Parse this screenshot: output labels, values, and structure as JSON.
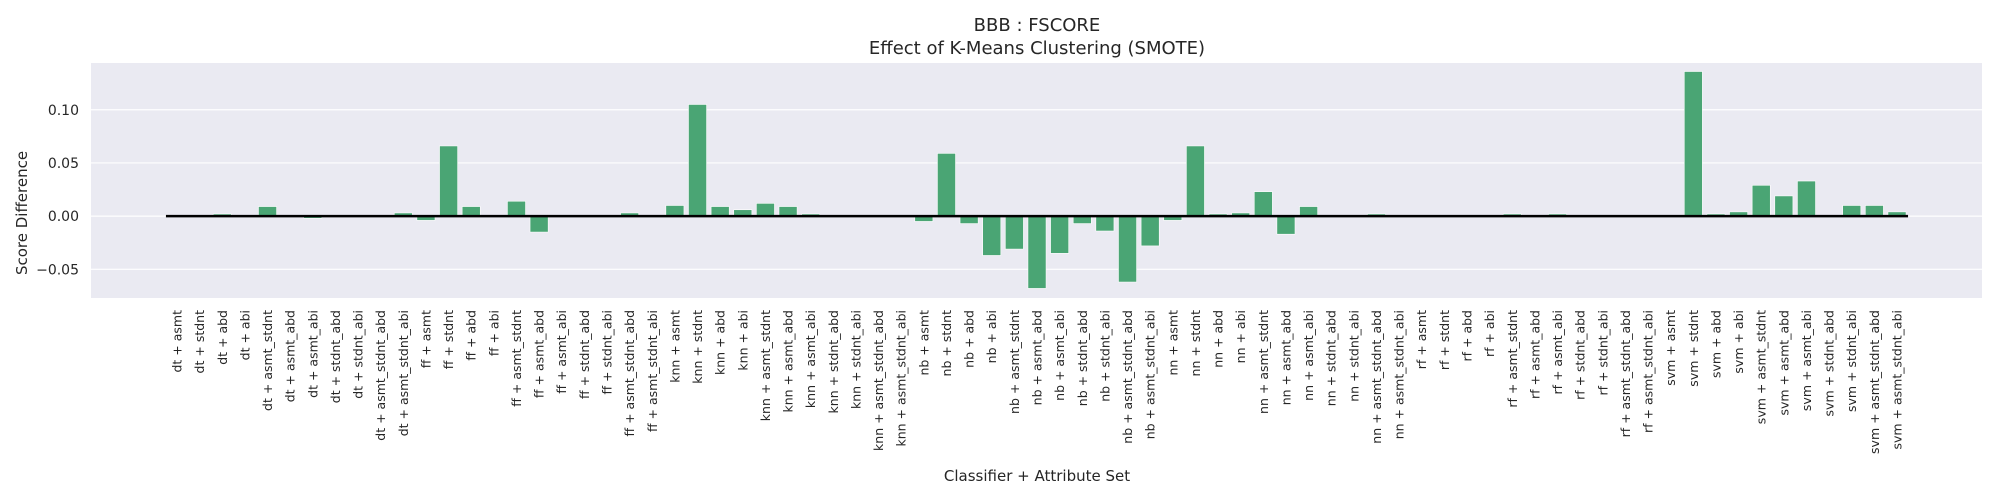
{
  "chart_data": {
    "type": "bar",
    "title": "BBB : FSCORE",
    "subtitle": "Effect of K-Means Clustering (SMOTE)",
    "xlabel": "Classifier + Attribute Set",
    "ylabel": "Score Difference",
    "ylim": [
      -0.077,
      0.144
    ],
    "yticks": [
      "0.10",
      "0.05",
      "0.00",
      "−0.05"
    ],
    "ytick_values": [
      0.1,
      0.05,
      0.0,
      -0.05
    ],
    "grid": true,
    "bar_color": "#4aa574",
    "background_color": "#eaeaf2",
    "zero_line_color": "#000000",
    "categories": [
      "dt + asmt",
      "dt + stdnt",
      "dt + abd",
      "dt + abi",
      "dt + asmt_stdnt",
      "dt + asmt_abd",
      "dt + asmt_abi",
      "dt + stdnt_abd",
      "dt + stdnt_abi",
      "dt + asmt_stdnt_abd",
      "dt + asmt_stdnt_abi",
      "ff + asmt",
      "ff + stdnt",
      "ff + abd",
      "ff + abi",
      "ff + asmt_stdnt",
      "ff + asmt_abd",
      "ff + asmt_abi",
      "ff + stdnt_abd",
      "ff + stdnt_abi",
      "ff + asmt_stdnt_abd",
      "ff + asmt_stdnt_abi",
      "knn + asmt",
      "knn + stdnt",
      "knn + abd",
      "knn + abi",
      "knn + asmt_stdnt",
      "knn + asmt_abd",
      "knn + asmt_abi",
      "knn + stdnt_abd",
      "knn + stdnt_abi",
      "knn + asmt_stdnt_abd",
      "knn + asmt_stdnt_abi",
      "nb + asmt",
      "nb + stdnt",
      "nb + abd",
      "nb + abi",
      "nb + asmt_stdnt",
      "nb + asmt_abd",
      "nb + asmt_abi",
      "nb + stdnt_abd",
      "nb + stdnt_abi",
      "nb + asmt_stdnt_abd",
      "nb + asmt_stdnt_abi",
      "nn + asmt",
      "nn + stdnt",
      "nn + abd",
      "nn + abi",
      "nn + asmt_stdnt",
      "nn + asmt_abd",
      "nn + asmt_abi",
      "nn + stdnt_abd",
      "nn + stdnt_abi",
      "nn + asmt_stdnt_abd",
      "nn + asmt_stdnt_abi",
      "rf + asmt",
      "rf + stdnt",
      "rf + abd",
      "rf + abi",
      "rf + asmt_stdnt",
      "rf + asmt_abd",
      "rf + asmt_abi",
      "rf + stdnt_abd",
      "rf + stdnt_abi",
      "rf + asmt_stdnt_abd",
      "rf + asmt_stdnt_abi",
      "svm + asmt",
      "svm + stdnt",
      "svm + abd",
      "svm + abi",
      "svm + asmt_stdnt",
      "svm + asmt_abd",
      "svm + asmt_abi",
      "svm + stdnt_abd",
      "svm + stdnt_abi",
      "svm + asmt_stdnt_abd",
      "svm + asmt_stdnt_abi"
    ],
    "values": [
      0.0,
      0.0,
      0.002,
      0.0,
      0.009,
      0.0,
      -0.002,
      0.0,
      0.0,
      0.0,
      0.003,
      -0.004,
      0.066,
      0.009,
      0.0,
      0.014,
      -0.015,
      0.0,
      0.0,
      0.0,
      0.003,
      0.0,
      0.01,
      0.105,
      0.009,
      0.006,
      0.012,
      0.009,
      0.002,
      0.0,
      0.0,
      0.0,
      0.0,
      -0.005,
      0.059,
      -0.007,
      -0.037,
      -0.031,
      -0.068,
      -0.035,
      -0.007,
      -0.014,
      -0.062,
      -0.028,
      -0.004,
      0.066,
      0.002,
      0.003,
      0.023,
      -0.017,
      0.009,
      0.0,
      0.0,
      0.002,
      0.0,
      0.0,
      0.0,
      0.0,
      0.0,
      0.002,
      0.0,
      0.002,
      0.0,
      0.0,
      0.0,
      0.0,
      0.0,
      0.136,
      0.002,
      0.004,
      0.029,
      0.019,
      0.033,
      0.0,
      0.01,
      0.01,
      0.004
    ]
  }
}
